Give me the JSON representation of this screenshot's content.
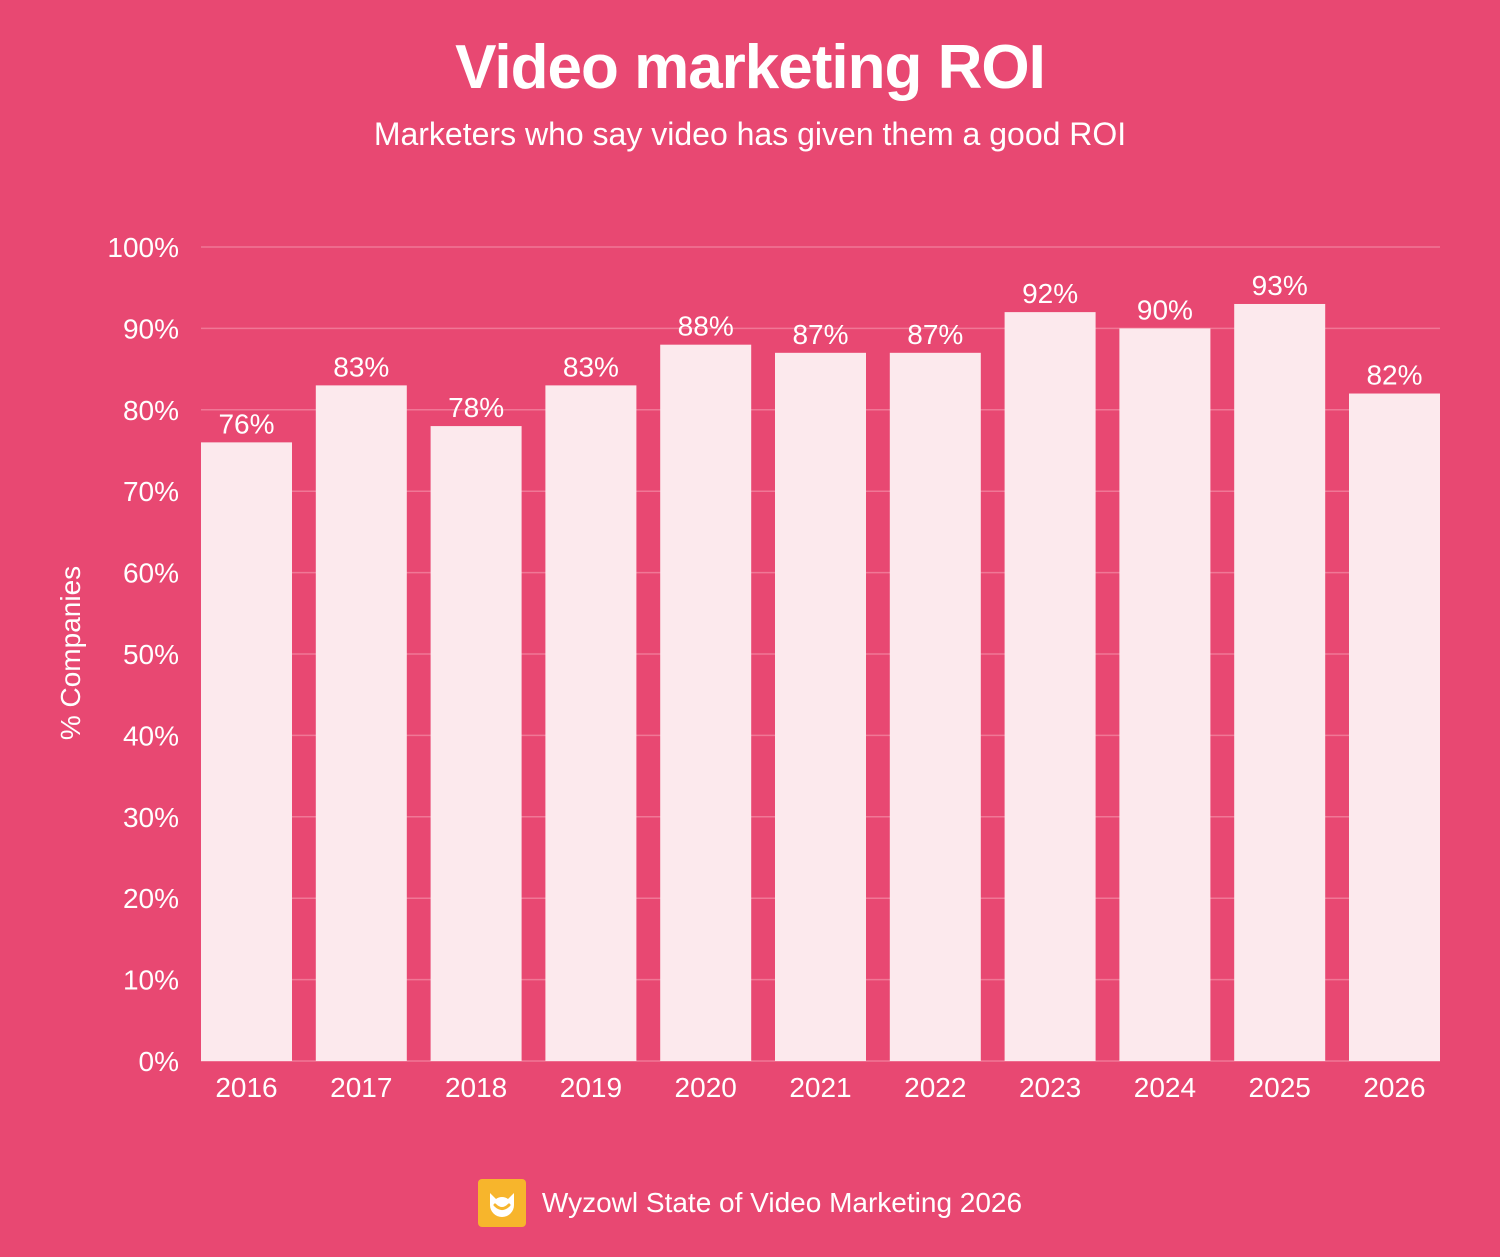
{
  "header": {
    "title": "Video marketing ROI",
    "subtitle": "Marketers who say video has given them a good ROI"
  },
  "footer": {
    "source": "Wyzowl State of Video Marketing 2026",
    "logo": "wyzowl-owl-logo"
  },
  "colors": {
    "background": "#e84872",
    "bar": "#fce9ed",
    "gridline": "#f07796",
    "text": "#ffffff",
    "logo_bg": "#f7b52c"
  },
  "chart_data": {
    "type": "bar",
    "categories": [
      "2016",
      "2017",
      "2018",
      "2019",
      "2020",
      "2021",
      "2022",
      "2023",
      "2024",
      "2025",
      "2026"
    ],
    "values": [
      76,
      83,
      78,
      83,
      88,
      87,
      87,
      92,
      90,
      93,
      82
    ],
    "data_labels": [
      "76%",
      "83%",
      "78%",
      "83%",
      "88%",
      "87%",
      "87%",
      "92%",
      "90%",
      "93%",
      "82%"
    ],
    "ylabel": "% Companies",
    "ylim": [
      0,
      100
    ],
    "yticks": [
      0,
      10,
      20,
      30,
      40,
      50,
      60,
      70,
      80,
      90,
      100
    ],
    "ytick_labels": [
      "0%",
      "10%",
      "20%",
      "30%",
      "40%",
      "50%",
      "60%",
      "70%",
      "80%",
      "90%",
      "100%"
    ],
    "grid": true,
    "legend": "none"
  }
}
